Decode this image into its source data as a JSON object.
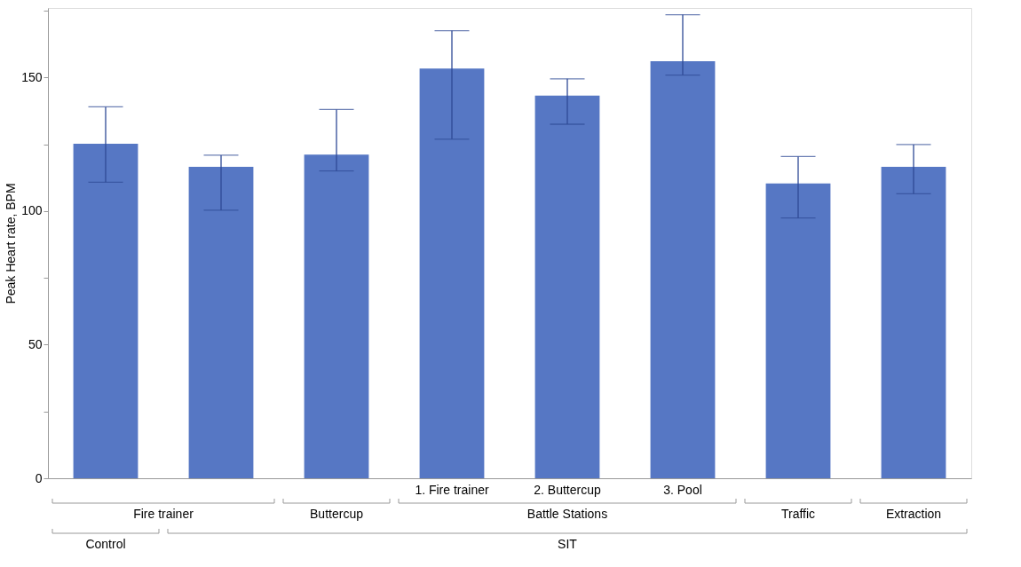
{
  "chart_data": {
    "type": "bar",
    "ylabel": "Peak Heart rate, BPM",
    "categories": [
      null,
      null,
      null,
      "1. Fire trainer",
      "2. Buttercup",
      "3. Pool",
      null,
      null
    ],
    "values": [
      125.2,
      116.6,
      121.1,
      153.3,
      143.2,
      156.1,
      110.3,
      116.6
    ],
    "errors": [
      [
        110.8,
        139.0
      ],
      [
        100.3,
        120.9
      ],
      [
        115.0,
        138.0
      ],
      [
        126.9,
        167.5
      ],
      [
        132.5,
        149.5
      ],
      [
        150.9,
        173.5
      ],
      [
        97.4,
        120.4
      ],
      [
        106.5,
        124.9
      ]
    ],
    "color": "#5677c4",
    "ylim": [
      0,
      176
    ],
    "yticks": [
      0,
      {
        "value": 25,
        "label": null
      },
      50,
      {
        "value": 75,
        "label": null
      },
      100,
      {
        "value": 125,
        "label": null
      },
      150,
      {
        "value": 175,
        "label": null
      }
    ],
    "annotations": [
      "Fire trainer",
      "Buttercup",
      "Battle Stations",
      "Traffic",
      "Extraction",
      "Control",
      "SIT"
    ],
    "grid": false
  }
}
